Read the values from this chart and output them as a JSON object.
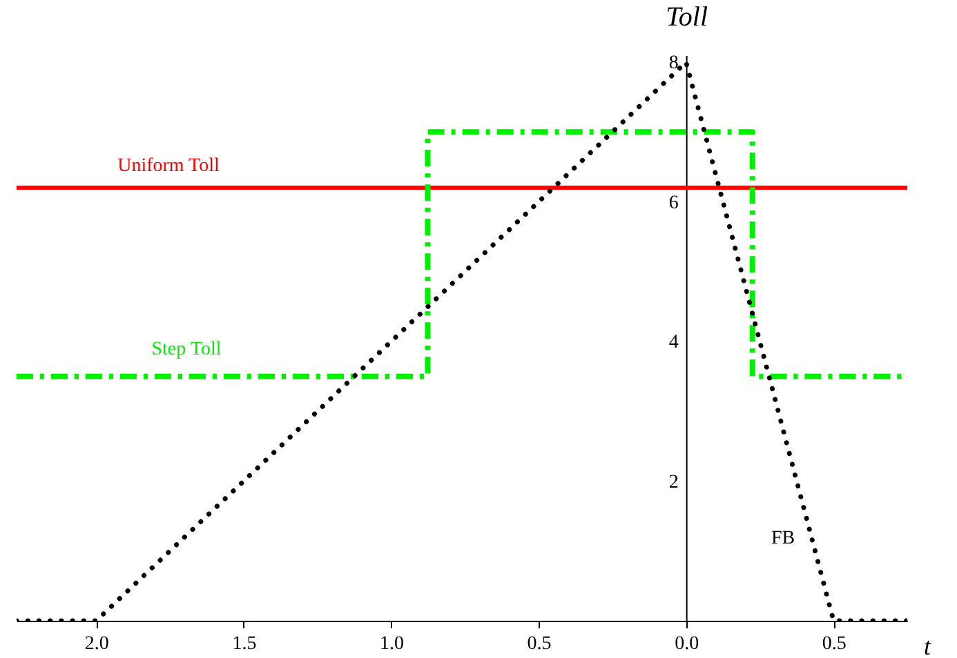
{
  "chart_data": {
    "type": "line",
    "xlabel": "t",
    "ylabel": "Toll",
    "xlim": [
      -2.27,
      0.75
    ],
    "ylim": [
      0,
      8.1
    ],
    "xticks": [
      {
        "value": -2,
        "label": "2.0"
      },
      {
        "value": -1.5,
        "label": "1.5"
      },
      {
        "value": -1,
        "label": "1.0"
      },
      {
        "value": -0.5,
        "label": "0.5"
      },
      {
        "value": 0,
        "label": "0.0"
      },
      0.5
    ],
    "yticks": [
      2,
      4,
      6,
      8
    ],
    "series": [
      {
        "name": "Uniform Toll",
        "type": "line",
        "color": "#ff0000",
        "line_style": "solid",
        "x": [
          -2.27,
          0.75
        ],
        "values": [
          6.2,
          6.2
        ]
      },
      {
        "name": "Step Toll",
        "type": "step",
        "color": "#00ee00",
        "line_style": "dashed",
        "x": [
          -2.27,
          -0.876,
          0.225,
          0.75
        ],
        "values": [
          3.5,
          7,
          3.5,
          3.5
        ]
      },
      {
        "name": "FB",
        "type": "line",
        "color": "#000000",
        "line_style": "dotted",
        "x": [
          -2.27,
          -2.0,
          0,
          0.5,
          0.75
        ],
        "values": [
          0,
          0,
          8,
          0,
          0
        ]
      }
    ]
  }
}
